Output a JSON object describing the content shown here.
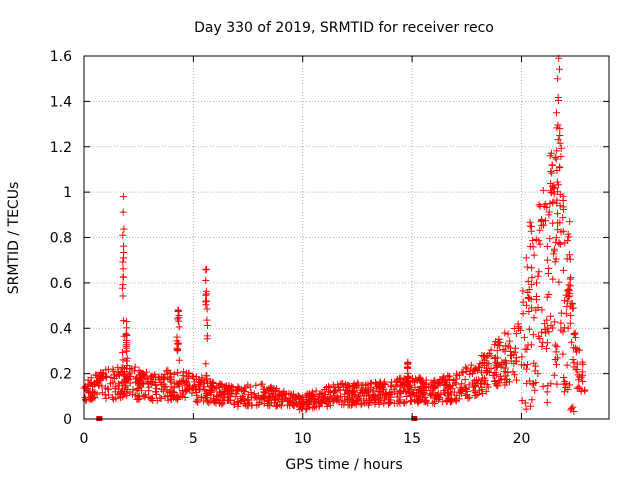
{
  "chart_data": {
    "type": "scatter",
    "title": "Day 330 of 2019, SRMTID for receiver reco",
    "xlabel": "GPS time / hours",
    "ylabel": "SRMTID / TECUs",
    "xlim": [
      0,
      24
    ],
    "ylim": [
      0,
      1.6
    ],
    "xticks": [
      0,
      5,
      10,
      15,
      20
    ],
    "xtick_labels": [
      "0",
      "5",
      "10",
      "15",
      "20"
    ],
    "yticks": [
      0,
      0.2,
      0.4,
      0.6,
      0.8,
      1.0,
      1.2,
      1.4,
      1.6
    ],
    "ytick_labels": [
      "0",
      "0.2",
      "0.4",
      "0.6",
      "0.8",
      "1",
      "1.2",
      "1.4",
      "1.6"
    ],
    "grid": true,
    "marker": "+",
    "color": "#ff0000",
    "gap_marker_color": "#cc0000",
    "gap_markers_x": [
      0.7,
      15.1
    ],
    "spikes": [
      {
        "x": 1.8,
        "peak": 0.98,
        "width": 0.08
      },
      {
        "x": 1.95,
        "peak": 0.43,
        "width": 0.06
      },
      {
        "x": 4.3,
        "peak": 0.48,
        "width": 0.12
      },
      {
        "x": 5.6,
        "peak": 0.66,
        "width": 0.1
      },
      {
        "x": 14.8,
        "peak": 0.25,
        "width": 0.08
      }
    ],
    "baseline": [
      [
        0.0,
        0.14
      ],
      [
        1.0,
        0.15
      ],
      [
        2.0,
        0.17
      ],
      [
        3.0,
        0.14
      ],
      [
        4.0,
        0.15
      ],
      [
        5.0,
        0.14
      ],
      [
        6.0,
        0.11
      ],
      [
        7.0,
        0.1
      ],
      [
        8.0,
        0.11
      ],
      [
        9.0,
        0.09
      ],
      [
        10.0,
        0.07
      ],
      [
        11.0,
        0.1
      ],
      [
        12.0,
        0.11
      ],
      [
        13.0,
        0.11
      ],
      [
        14.0,
        0.12
      ],
      [
        15.0,
        0.13
      ],
      [
        16.0,
        0.12
      ],
      [
        17.0,
        0.14
      ],
      [
        18.0,
        0.18
      ],
      [
        19.0,
        0.25
      ],
      [
        19.5,
        0.28
      ],
      [
        20.0,
        0.3
      ],
      [
        20.5,
        0.5
      ],
      [
        21.0,
        0.55
      ],
      [
        21.5,
        0.7
      ],
      [
        22.0,
        0.5
      ],
      [
        22.3,
        0.35
      ],
      [
        22.6,
        0.22
      ],
      [
        22.9,
        0.18
      ]
    ],
    "storm_peaks": [
      {
        "x": 21.7,
        "peak": 1.59
      },
      {
        "x": 21.65,
        "peak": 1.5
      },
      {
        "x": 21.6,
        "peak": 1.35
      },
      {
        "x": 21.75,
        "peak": 1.28
      },
      {
        "x": 21.4,
        "peak": 1.12
      },
      {
        "x": 21.5,
        "peak": 1.02
      },
      {
        "x": 21.3,
        "peak": 0.95
      },
      {
        "x": 20.4,
        "peak": 0.85
      },
      {
        "x": 22.2,
        "peak": 0.87
      }
    ],
    "x_end": 22.9
  }
}
